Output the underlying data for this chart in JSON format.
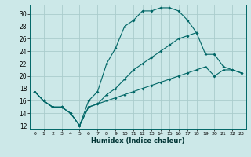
{
  "xlabel": "Humidex (Indice chaleur)",
  "bg_color": "#cce8e8",
  "grid_color": "#aacccc",
  "line_color": "#006666",
  "xlim": [
    -0.5,
    23.5
  ],
  "ylim": [
    11.5,
    31.5
  ],
  "xticks": [
    0,
    1,
    2,
    3,
    4,
    5,
    6,
    7,
    8,
    9,
    10,
    11,
    12,
    13,
    14,
    15,
    16,
    17,
    18,
    19,
    20,
    21,
    22,
    23
  ],
  "yticks": [
    12,
    14,
    16,
    18,
    20,
    22,
    24,
    26,
    28,
    30
  ],
  "line1_x": [
    0,
    1,
    2,
    3,
    4,
    5,
    6,
    7,
    8,
    9,
    10,
    11,
    12,
    13,
    14,
    15,
    16,
    17,
    18
  ],
  "line1_y": [
    17.5,
    16,
    15,
    15,
    14,
    12,
    16,
    17.5,
    22,
    24.5,
    28,
    29,
    30.5,
    30.5,
    31,
    31,
    30.5,
    29,
    27
  ],
  "line2_x": [
    0,
    1,
    2,
    3,
    4,
    5,
    6,
    7,
    8,
    9,
    10,
    11,
    12,
    13,
    14,
    15,
    16,
    17,
    18,
    19,
    20,
    21,
    22,
    23
  ],
  "line2_y": [
    17.5,
    16,
    15,
    15,
    14,
    12,
    15,
    15.5,
    17,
    18,
    19.5,
    21,
    22,
    23,
    24,
    25,
    26,
    26.5,
    27,
    23.5,
    23.5,
    21.5,
    21,
    20.5
  ],
  "line3_x": [
    0,
    1,
    2,
    3,
    4,
    5,
    6,
    7,
    8,
    9,
    10,
    11,
    12,
    13,
    14,
    15,
    16,
    17,
    18,
    19,
    20,
    21,
    22,
    23
  ],
  "line3_y": [
    17.5,
    16,
    15,
    15,
    14,
    12,
    15,
    15.5,
    16,
    16.5,
    17,
    17.5,
    18,
    18.5,
    19,
    19.5,
    20,
    20.5,
    21,
    21.5,
    20,
    21,
    21,
    20.5
  ]
}
